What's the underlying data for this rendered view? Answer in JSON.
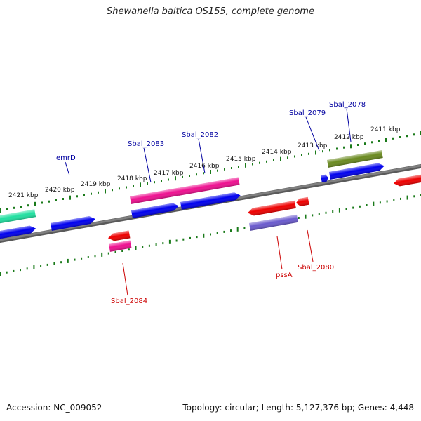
{
  "title": "Shewanella baltica OS155, complete genome",
  "footer": {
    "accession": "Accession: NC_009052",
    "summary": "Topology: circular; Length: 5,127,376 bp; Genes: 4,448"
  },
  "colors": {
    "backbone": "#808080",
    "ticks": "#1a7a1a",
    "label_blue": "#0000a0",
    "label_red": "#cc0000",
    "gene_blue": "#0000ee",
    "gene_red": "#ee0000",
    "gene_pink": "#ee1090",
    "gene_teal": "#20e0a0",
    "gene_olive": "#6a8a20",
    "gene_slate": "#6a5acd"
  },
  "scale_labels": [
    "2421 kbp",
    "2420 kbp",
    "2419 kbp",
    "2418 kbp",
    "2417 kbp",
    "2416 kbp",
    "2415 kbp",
    "2414 kbp",
    "2413 kbp",
    "2412 kbp",
    "2411 kbp"
  ],
  "gene_labels": [
    {
      "text": "emrD",
      "color": "blue"
    },
    {
      "text": "Sbal_2083",
      "color": "blue"
    },
    {
      "text": "Sbal_2082",
      "color": "blue"
    },
    {
      "text": "Sbal_2079",
      "color": "blue"
    },
    {
      "text": "Sbal_2078",
      "color": "blue"
    },
    {
      "text": "Sbal_2084",
      "color": "red"
    },
    {
      "text": "pssA",
      "color": "red"
    },
    {
      "text": "Sbal_2080",
      "color": "red"
    }
  ]
}
